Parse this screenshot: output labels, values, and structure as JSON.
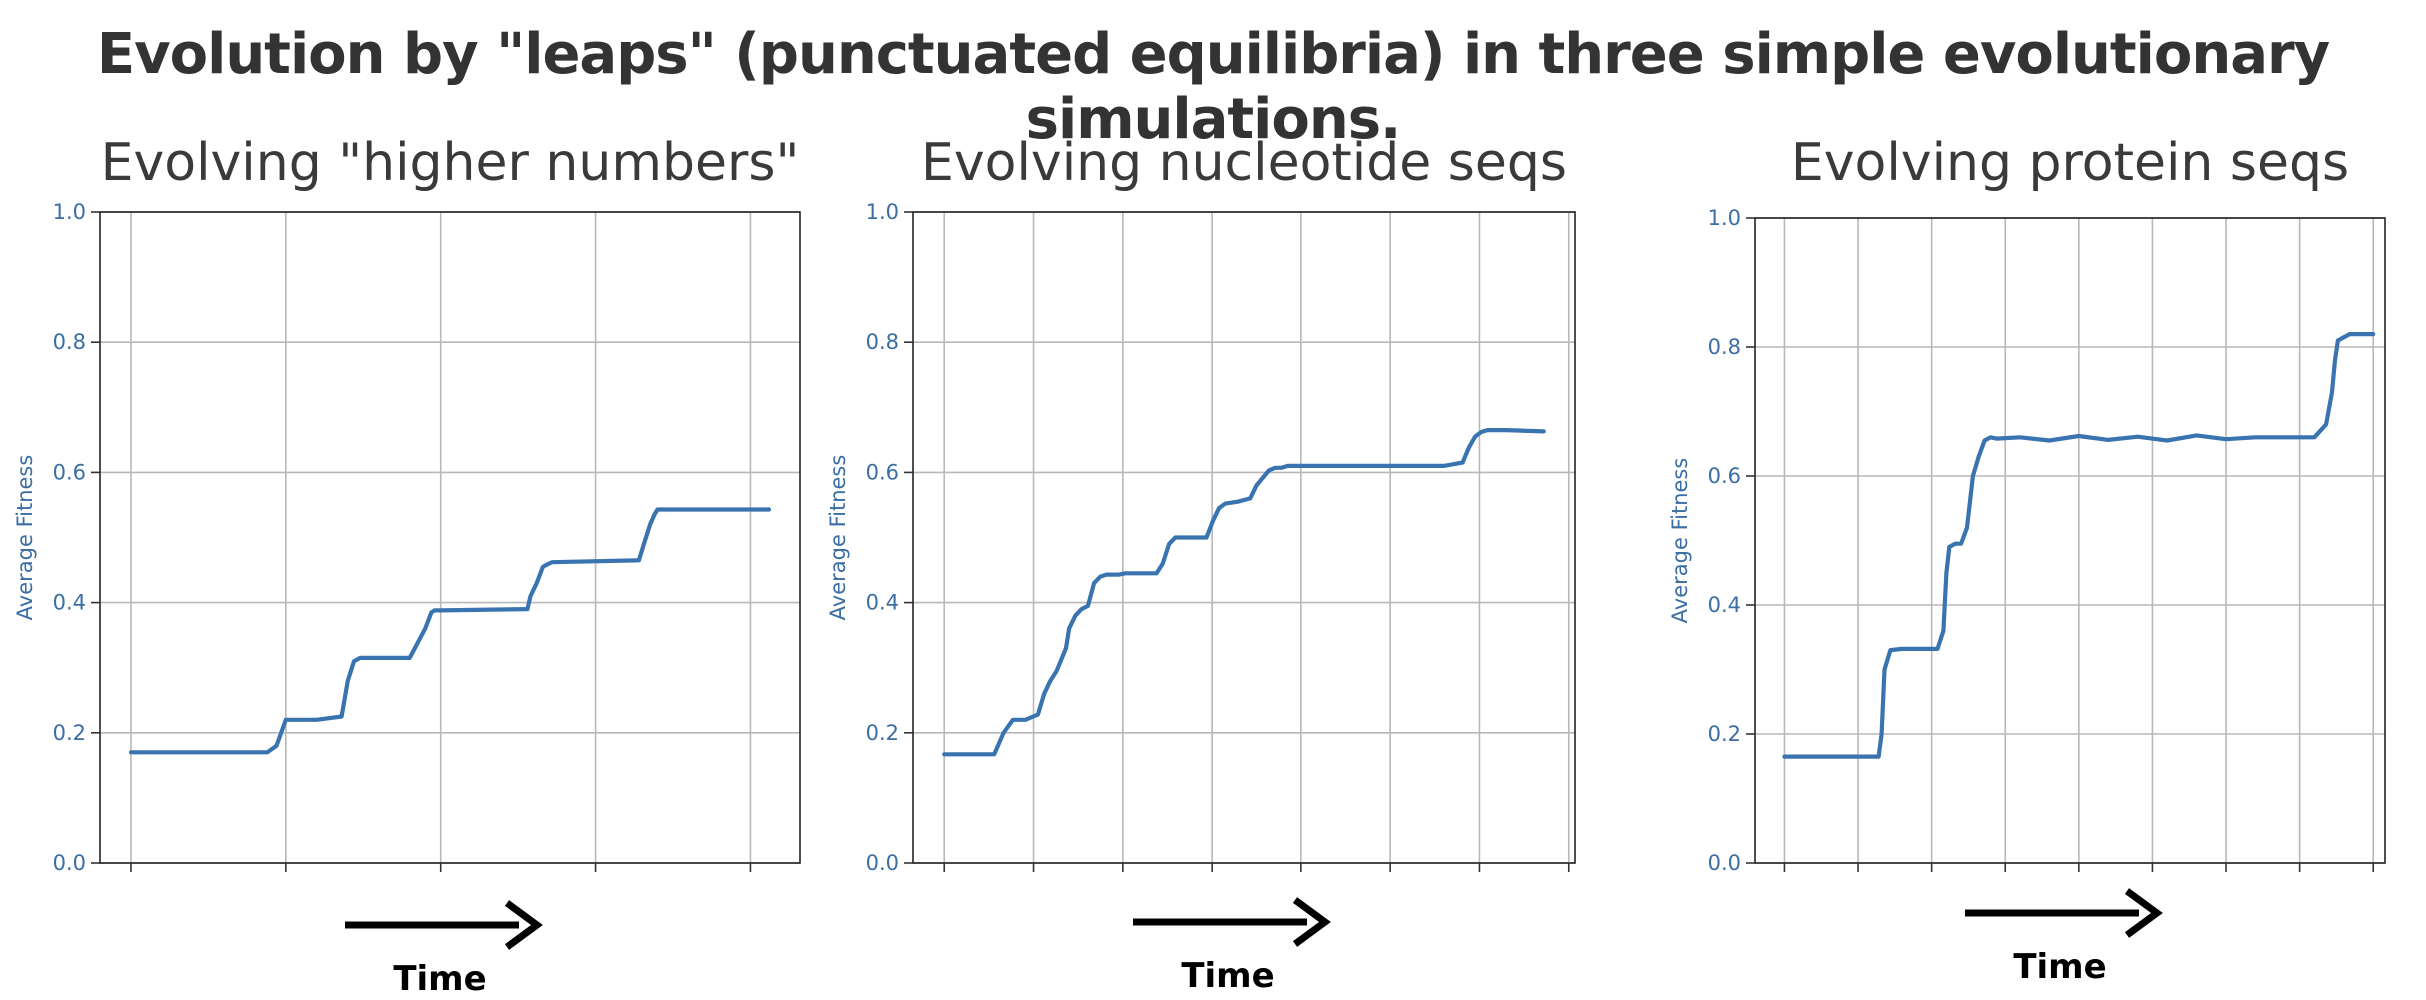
{
  "figure": {
    "title": "Evolution by \"leaps\" (punctuated equilibria) in three simple evolutionary simulations.",
    "line_color": "#3a74b0",
    "text_color": "#3a6ea5"
  },
  "chart_data": [
    {
      "type": "line",
      "title": "Evolving \"higher numbers\"",
      "ylabel": "Average Fitness",
      "xlabel": "Time",
      "ylim": [
        0,
        1
      ],
      "yticks": [
        0.0,
        0.2,
        0.4,
        0.6,
        0.8,
        1.0
      ],
      "ytick_labels": [
        "0.0",
        "0.2",
        "0.4",
        "0.6",
        "0.8",
        "1.0"
      ],
      "xlim": [
        -0.05,
        1.08
      ],
      "xticks": [
        0,
        0.25,
        0.5,
        0.75,
        1.0
      ],
      "x_tick_labels_shown": false,
      "grid": true,
      "series": [
        {
          "x": [
            0,
            0.22,
            0.235,
            0.25,
            0.3,
            0.34,
            0.35,
            0.36,
            0.37,
            0.45,
            0.475,
            0.485,
            0.49,
            0.5,
            0.64,
            0.645,
            0.655,
            0.665,
            0.675,
            0.68,
            0.82,
            0.828,
            0.838,
            0.845,
            0.85,
            1.03
          ],
          "y": [
            0.17,
            0.17,
            0.18,
            0.22,
            0.22,
            0.225,
            0.28,
            0.31,
            0.315,
            0.315,
            0.36,
            0.385,
            0.388,
            0.388,
            0.39,
            0.41,
            0.43,
            0.455,
            0.46,
            0.462,
            0.465,
            0.49,
            0.52,
            0.535,
            0.543,
            0.543
          ]
        }
      ]
    },
    {
      "type": "line",
      "title": "Evolving nucleotide seqs",
      "ylabel": "Average Fitness",
      "xlabel": "Time",
      "ylim": [
        0,
        1
      ],
      "yticks": [
        0.0,
        0.2,
        0.4,
        0.6,
        0.8,
        1.0
      ],
      "ytick_labels": [
        "0.0",
        "0.2",
        "0.4",
        "0.6",
        "0.8",
        "1.0"
      ],
      "xlim": [
        -0.05,
        1.01
      ],
      "xticks": [
        0,
        0.143,
        0.286,
        0.429,
        0.571,
        0.714,
        0.857,
        1.0
      ],
      "x_tick_labels_shown": false,
      "grid": true,
      "series": [
        {
          "x": [
            0,
            0.08,
            0.095,
            0.11,
            0.13,
            0.15,
            0.16,
            0.17,
            0.18,
            0.195,
            0.2,
            0.21,
            0.22,
            0.23,
            0.24,
            0.25,
            0.26,
            0.27,
            0.28,
            0.29,
            0.34,
            0.35,
            0.36,
            0.37,
            0.38,
            0.42,
            0.43,
            0.44,
            0.45,
            0.47,
            0.49,
            0.5,
            0.52,
            0.53,
            0.54,
            0.55,
            0.56,
            0.6,
            0.8,
            0.83,
            0.84,
            0.85,
            0.86,
            0.87,
            0.9,
            0.96
          ],
          "y": [
            0.167,
            0.167,
            0.2,
            0.22,
            0.22,
            0.228,
            0.26,
            0.28,
            0.295,
            0.33,
            0.36,
            0.38,
            0.39,
            0.395,
            0.43,
            0.44,
            0.443,
            0.443,
            0.443,
            0.445,
            0.445,
            0.46,
            0.49,
            0.5,
            0.5,
            0.5,
            0.525,
            0.545,
            0.552,
            0.555,
            0.56,
            0.58,
            0.603,
            0.607,
            0.607,
            0.61,
            0.61,
            0.61,
            0.61,
            0.615,
            0.638,
            0.655,
            0.662,
            0.665,
            0.665,
            0.663
          ]
        }
      ]
    },
    {
      "type": "line",
      "title": "Evolving protein seqs",
      "ylabel": "Average Fitness",
      "xlabel": "Time",
      "ylim": [
        0,
        1
      ],
      "yticks": [
        0.0,
        0.2,
        0.4,
        0.6,
        0.8,
        1.0
      ],
      "ytick_labels": [
        "0.0",
        "0.2",
        "0.4",
        "0.6",
        "0.8",
        "1.0"
      ],
      "xlim": [
        -0.05,
        1.02
      ],
      "xticks": [
        0,
        0.125,
        0.25,
        0.375,
        0.5,
        0.625,
        0.75,
        0.875,
        1.0
      ],
      "x_tick_labels_shown": false,
      "grid": true,
      "series": [
        {
          "x": [
            0,
            0.16,
            0.165,
            0.17,
            0.18,
            0.2,
            0.26,
            0.27,
            0.275,
            0.28,
            0.29,
            0.3,
            0.31,
            0.32,
            0.33,
            0.34,
            0.35,
            0.36,
            0.4,
            0.45,
            0.5,
            0.55,
            0.6,
            0.65,
            0.7,
            0.75,
            0.8,
            0.9,
            0.92,
            0.93,
            0.935,
            0.94,
            0.96,
            1.0
          ],
          "y": [
            0.165,
            0.165,
            0.2,
            0.3,
            0.33,
            0.332,
            0.332,
            0.36,
            0.45,
            0.49,
            0.495,
            0.495,
            0.52,
            0.6,
            0.63,
            0.655,
            0.66,
            0.658,
            0.66,
            0.655,
            0.662,
            0.656,
            0.661,
            0.655,
            0.663,
            0.657,
            0.66,
            0.66,
            0.68,
            0.73,
            0.78,
            0.81,
            0.82,
            0.82
          ]
        }
      ]
    }
  ]
}
